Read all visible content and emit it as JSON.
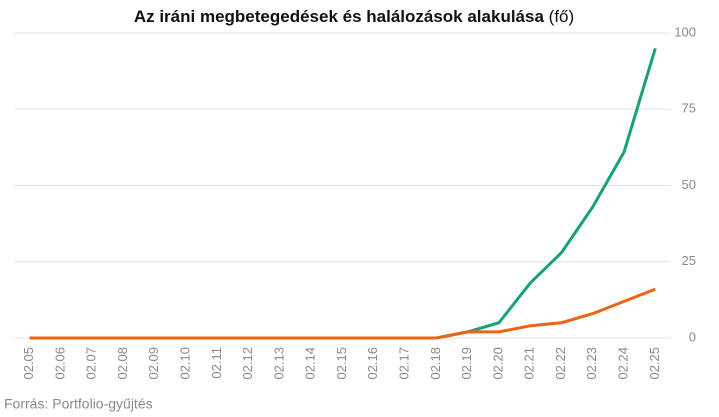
{
  "chart_data": {
    "type": "line",
    "title": "Az iráni megbetegedések és halálozások alakulása",
    "unit": "(fő)",
    "source": "Forrás: Portfolio-gyűjtés",
    "categories": [
      "02.05",
      "02.06",
      "02.07",
      "02.08",
      "02.09",
      "02.10",
      "02.11",
      "02.12",
      "02.13",
      "02.14",
      "02.15",
      "02.16",
      "02.17",
      "02.18",
      "02.19",
      "02.20",
      "02.21",
      "02.22",
      "02.23",
      "02.24",
      "02.25"
    ],
    "series": [
      {
        "color": "#17a27a",
        "values": [
          0,
          0,
          0,
          0,
          0,
          0,
          0,
          0,
          0,
          0,
          0,
          0,
          0,
          0,
          2,
          5,
          18,
          28,
          43,
          61,
          95
        ]
      },
      {
        "color": "#ec6516",
        "values": [
          0,
          0,
          0,
          0,
          0,
          0,
          0,
          0,
          0,
          0,
          0,
          0,
          0,
          0,
          2,
          2,
          4,
          5,
          8,
          12,
          16
        ]
      }
    ],
    "ylim": [
      0,
      100
    ],
    "yticks": [
      0,
      25,
      50,
      75,
      100
    ],
    "grid": true
  }
}
